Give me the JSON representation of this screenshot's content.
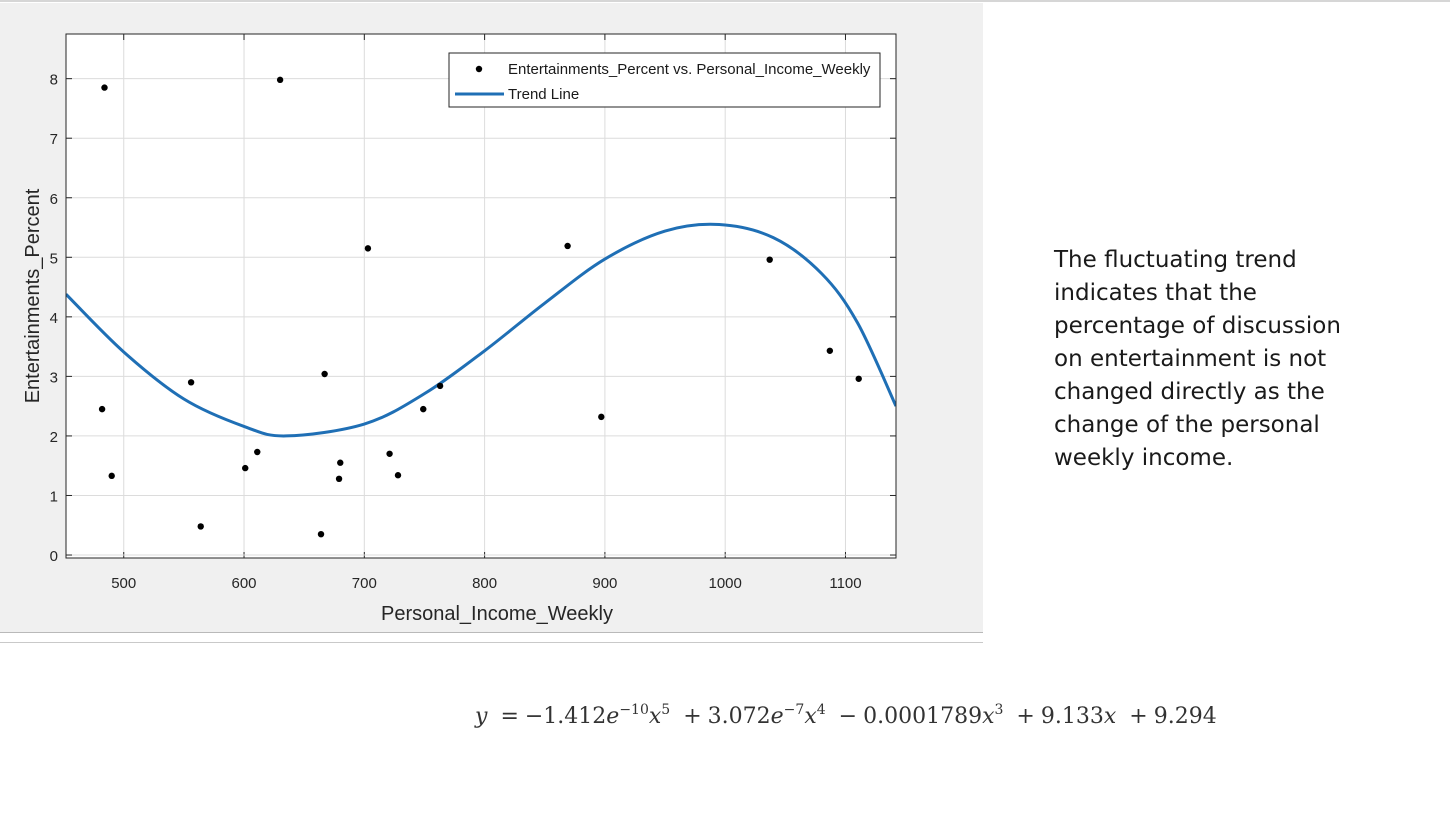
{
  "chart_data": {
    "type": "scatter",
    "xlabel": "Personal_Income_Weekly",
    "ylabel": "Entertainments_Percent",
    "xlim": [
      452,
      1142
    ],
    "ylim": [
      -0.05,
      8.75
    ],
    "xticks": [
      500,
      600,
      700,
      800,
      900,
      1000,
      1100
    ],
    "yticks": [
      0,
      1,
      2,
      3,
      4,
      5,
      6,
      7,
      8
    ],
    "grid": true,
    "legend_position": "top-right",
    "series": [
      {
        "name": "Entertainments_Percent vs. Personal_Income_Weekly",
        "style": "points",
        "color": "#000000",
        "points": [
          [
            484,
            7.85
          ],
          [
            482,
            2.45
          ],
          [
            490,
            1.33
          ],
          [
            556,
            2.9
          ],
          [
            564,
            0.48
          ],
          [
            601,
            1.46
          ],
          [
            611,
            1.73
          ],
          [
            630,
            7.98
          ],
          [
            664,
            0.35
          ],
          [
            667,
            3.04
          ],
          [
            679,
            1.28
          ],
          [
            680,
            1.55
          ],
          [
            703,
            5.15
          ],
          [
            721,
            1.7
          ],
          [
            728,
            1.34
          ],
          [
            749,
            2.45
          ],
          [
            763,
            2.84
          ],
          [
            869,
            5.19
          ],
          [
            897,
            2.32
          ],
          [
            1037,
            4.96
          ],
          [
            1087,
            3.43
          ],
          [
            1111,
            2.96
          ]
        ]
      },
      {
        "name": "Trend Line",
        "style": "line",
        "color": "#1f6fb5",
        "points": [
          [
            452,
            4.38
          ],
          [
            500,
            3.41
          ],
          [
            550,
            2.62
          ],
          [
            600,
            2.16
          ],
          [
            635,
            2.0
          ],
          [
            700,
            2.2
          ],
          [
            750,
            2.71
          ],
          [
            800,
            3.43
          ],
          [
            850,
            4.23
          ],
          [
            900,
            4.97
          ],
          [
            950,
            5.44
          ],
          [
            995,
            5.55
          ],
          [
            1040,
            5.33
          ],
          [
            1080,
            4.73
          ],
          [
            1110,
            3.9
          ],
          [
            1142,
            2.5
          ]
        ]
      }
    ]
  },
  "note": {
    "text": "The fluctuating trend indicates that the percentage of discussion on entertainment is not changed directly as the change of the personal weekly income."
  },
  "equation": {
    "lhs": "y",
    "equals": "=",
    "t1_coef": "−1.412",
    "t1_e": "e",
    "t1_exp": "−10",
    "t1_x": "x",
    "t1_pow": "5",
    "op1": "+",
    "t2_coef": "3.072",
    "t2_e": "e",
    "t2_exp": "−7",
    "t2_x": "x",
    "t2_pow": "4",
    "op2": "−",
    "t3_coef": "0.0001789",
    "t3_x": "x",
    "t3_pow": "3",
    "op3": "+",
    "t4_coef": "9.133",
    "t4_x": "x",
    "op4": "+",
    "t5": "9.294"
  }
}
